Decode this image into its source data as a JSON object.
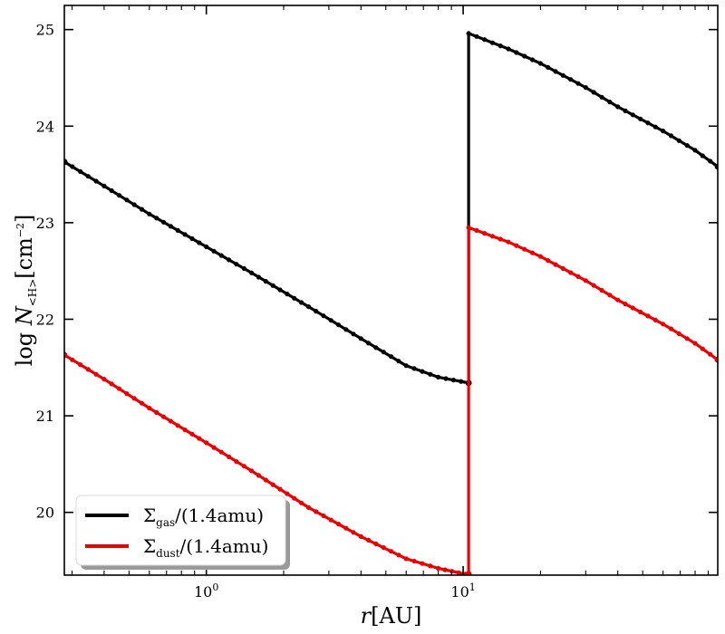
{
  "chart_data": {
    "type": "line",
    "title": "",
    "xscale": "log",
    "xlim": [
      0.28,
      98
    ],
    "ylim": [
      19.35,
      25.25
    ],
    "xlabel": {
      "main": "r",
      "unit": "[AU]"
    },
    "ylabel": {
      "prefix": "log N",
      "subscript": "<H>",
      "unit_open": "[cm",
      "unit_exp": "−2",
      "unit_close": "]"
    },
    "x_ticks": [
      {
        "value": 1,
        "base": "10",
        "exp": "0"
      },
      {
        "value": 10,
        "base": "10",
        "exp": "1"
      }
    ],
    "y_ticks": [
      20,
      21,
      22,
      23,
      24,
      25
    ],
    "grid": false,
    "legend_position": "lower-left",
    "series": [
      {
        "name": "Σ_gas/(1.4amu)",
        "legend_main": "Σ",
        "legend_sub": "gas",
        "legend_rest": "/(1.4amu)",
        "color": "#000000",
        "segments": [
          {
            "x": [
              0.28,
              0.4,
              0.6,
              1.0,
              1.5,
              2.5,
              4.0,
              6.0,
              8.0,
              10.5
            ],
            "y": [
              23.63,
              23.38,
              23.09,
              22.75,
              22.48,
              22.13,
              21.8,
              21.52,
              21.4,
              21.34
            ]
          },
          {
            "x": [
              10.5,
              10.5,
              15,
              20,
              30,
              40,
              60,
              80,
              98
            ],
            "y": [
              21.34,
              24.96,
              24.8,
              24.65,
              24.4,
              24.2,
              23.95,
              23.75,
              23.58
            ]
          }
        ]
      },
      {
        "name": "Σ_dust/(1.4amu)",
        "legend_main": "Σ",
        "legend_sub": "dust",
        "legend_rest": "/(1.4amu)",
        "color": "#ee0000",
        "segments": [
          {
            "x": [
              0.28,
              0.4,
              0.6,
              1.0,
              1.5,
              2.5,
              4.0,
              6.0,
              8.0,
              10.2,
              10.5
            ],
            "y": [
              21.63,
              21.38,
              21.08,
              20.72,
              20.43,
              20.05,
              19.75,
              19.52,
              19.42,
              19.36,
              19.36
            ]
          },
          {
            "x": [
              10.5,
              10.5,
              15,
              20,
              30,
              40,
              60,
              80,
              98
            ],
            "y": [
              19.36,
              22.95,
              22.8,
              22.65,
              22.4,
              22.2,
              21.95,
              21.75,
              21.58
            ]
          }
        ]
      }
    ]
  }
}
